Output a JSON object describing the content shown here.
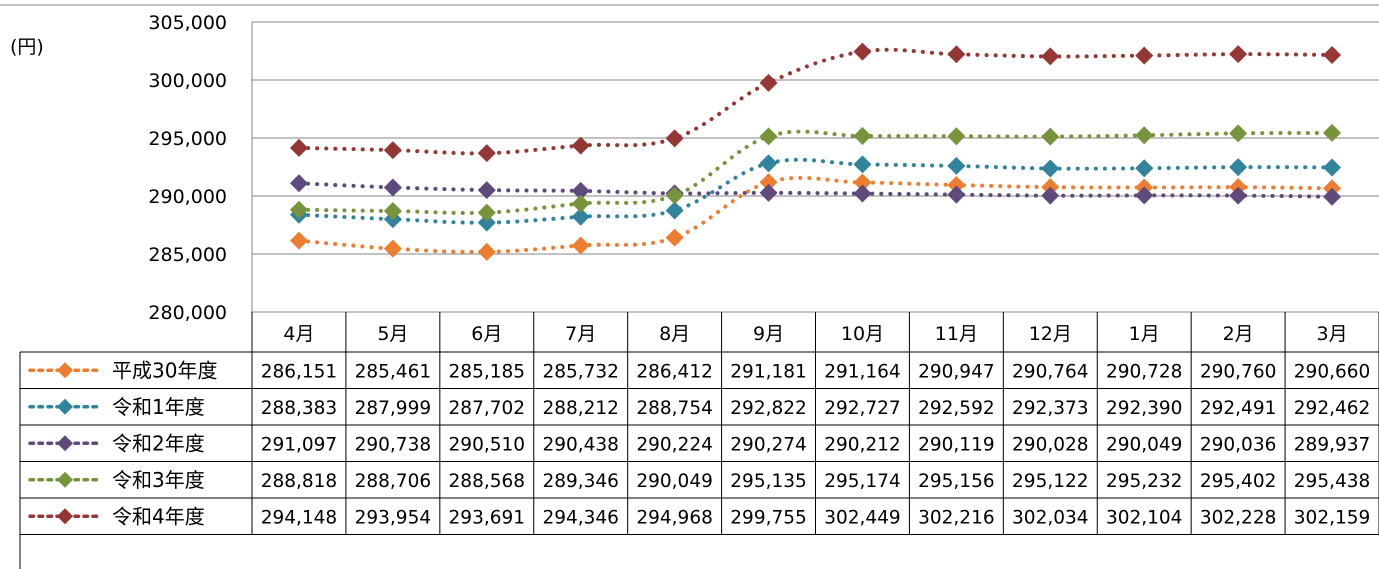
{
  "chart_data": {
    "type": "line",
    "unit_label": "(円)",
    "categories": [
      "4月",
      "5月",
      "6月",
      "7月",
      "8月",
      "9月",
      "10月",
      "11月",
      "12月",
      "1月",
      "2月",
      "3月"
    ],
    "ylim": [
      280000,
      305000
    ],
    "y_ticks": [
      280000,
      285000,
      290000,
      295000,
      300000,
      305000
    ],
    "y_tick_labels": [
      "280,000",
      "285,000",
      "290,000",
      "295,000",
      "300,000",
      "305,000"
    ],
    "grid": true,
    "legend": "data-table-left",
    "series": [
      {
        "name": "平成30年度",
        "color": "#ED7D31",
        "values": [
          286151,
          285461,
          285185,
          285732,
          286412,
          291181,
          291164,
          290947,
          290764,
          290728,
          290760,
          290660
        ]
      },
      {
        "name": "令和1年度",
        "color": "#31849B",
        "values": [
          288383,
          287999,
          287702,
          288212,
          288754,
          292822,
          292727,
          292592,
          292373,
          292390,
          292491,
          292462
        ]
      },
      {
        "name": "令和2年度",
        "color": "#604A7B",
        "values": [
          291097,
          290738,
          290510,
          290438,
          290224,
          290274,
          290212,
          290119,
          290028,
          290049,
          290036,
          289937
        ]
      },
      {
        "name": "令和3年度",
        "color": "#77933C",
        "values": [
          288818,
          288706,
          288568,
          289346,
          290049,
          295135,
          295174,
          295156,
          295122,
          295232,
          295402,
          295438
        ]
      },
      {
        "name": "令和4年度",
        "color": "#953735",
        "values": [
          294148,
          293954,
          293691,
          294346,
          294968,
          299755,
          302449,
          302216,
          302034,
          302104,
          302228,
          302159
        ]
      }
    ]
  }
}
